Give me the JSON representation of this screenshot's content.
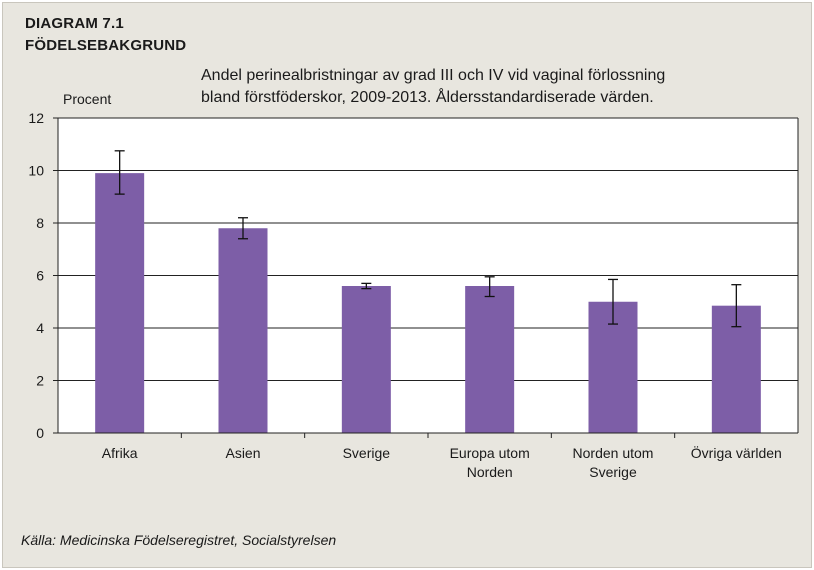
{
  "header": {
    "diagram_number": "DIAGRAM 7.1",
    "diagram_name": "FÖDELSEBAKGRUND",
    "subtitle_line1": "Andel perinealbristningar av grad III och IV vid vaginal  förlossning",
    "subtitle_line2": "bland förstföderskor, 2009-2013. Åldersstandardiserade värden."
  },
  "source": "Källa: Medicinska Födelseregistret, Socialstyrelsen",
  "colors": {
    "bar": "#7d5ea7",
    "background": "#e8e6df",
    "plot_background": "#ffffff"
  },
  "chart_data": {
    "type": "bar",
    "title": "Andel perinealbristningar av grad III och IV vid vaginal  förlossning bland förstföderskor, 2009-2013. Åldersstandardiserade värden.",
    "ylabel": "Procent",
    "xlabel": "",
    "ylim": [
      0,
      12
    ],
    "yticks": [
      0,
      2,
      4,
      6,
      8,
      10,
      12
    ],
    "grid": true,
    "legend": "none",
    "categories": [
      [
        "Afrika"
      ],
      [
        "Asien"
      ],
      [
        "Sverige"
      ],
      [
        "Europa utom",
        "Norden"
      ],
      [
        "Norden utom",
        "Sverige"
      ],
      [
        "Övriga världen"
      ]
    ],
    "values": [
      9.9,
      7.8,
      5.6,
      5.6,
      5.0,
      4.85
    ],
    "error_low": [
      9.1,
      7.4,
      5.5,
      5.2,
      4.15,
      4.05
    ],
    "error_high": [
      10.75,
      8.2,
      5.7,
      5.95,
      5.85,
      5.65
    ]
  }
}
